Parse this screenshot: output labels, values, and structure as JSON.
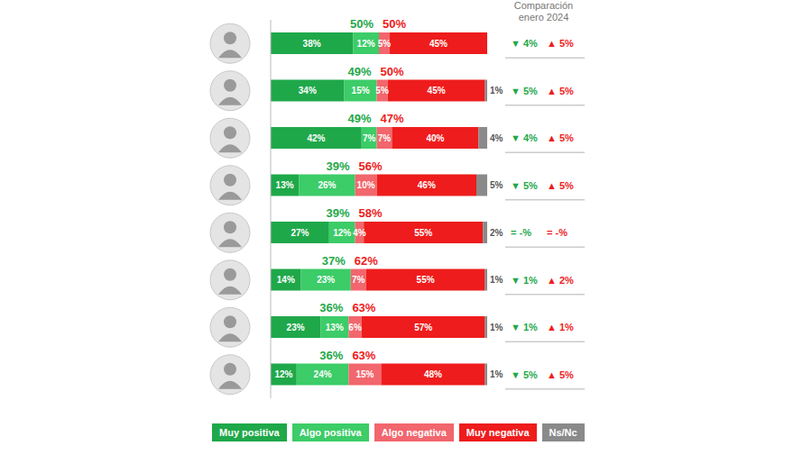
{
  "chart_data": {
    "type": "bar",
    "orientation": "horizontal",
    "stacked": true,
    "data_labels": true,
    "tick_labels": false,
    "legend": "bottom",
    "xlim": [
      0,
      100
    ],
    "categories": [
      null,
      null,
      null,
      null,
      null,
      null,
      null,
      null
    ],
    "series": [
      {
        "name": "Muy positiva",
        "color": "#1fa84a",
        "values": [
          38,
          34,
          42,
          13,
          27,
          14,
          23,
          12
        ],
        "value_labels": [
          "38%",
          "34%",
          "42%",
          "13%",
          "27%",
          "14%",
          "23%",
          "12%"
        ]
      },
      {
        "name": "Algo positiva",
        "color": "#3ccc68",
        "values": [
          12,
          15,
          7,
          26,
          12,
          23,
          13,
          24
        ],
        "value_labels": [
          "12%",
          "15%",
          "7%",
          "26%",
          "12%",
          "23%",
          "13%",
          "24%"
        ]
      },
      {
        "name": "Algo negativa",
        "color": "#f2666d",
        "values": [
          5,
          5,
          7,
          10,
          4,
          7,
          6,
          15
        ],
        "value_labels": [
          "5%",
          "5%",
          "7%",
          "10%",
          "4%",
          "7%",
          "6%",
          "15%"
        ]
      },
      {
        "name": "Muy negativa",
        "color": "#ee1c1c",
        "values": [
          45,
          45,
          40,
          46,
          55,
          55,
          57,
          48
        ],
        "value_labels": [
          "45%",
          "45%",
          "40%",
          "46%",
          "55%",
          "55%",
          "57%",
          "48%"
        ]
      },
      {
        "name": "Ns/Nc",
        "color": "#8a8a8a",
        "values": [
          0,
          1,
          4,
          5,
          2,
          1,
          1,
          1
        ],
        "value_labels": [
          "0%",
          "1%",
          "4%",
          "5%",
          "2%",
          "1%",
          "1%",
          "1%"
        ]
      }
    ],
    "positive_total_labels": [
      "50%",
      "49%",
      "49%",
      "39%",
      "39%",
      "37%",
      "36%",
      "36%"
    ],
    "negative_total_labels": [
      "50%",
      "50%",
      "47%",
      "56%",
      "58%",
      "62%",
      "63%",
      "63%"
    ],
    "comparison_title": "Comparación enero 2024",
    "comparison": [
      {
        "down": "▼ 4%",
        "up": "▲ 5%"
      },
      {
        "down": "▼ 5%",
        "up": "▲ 5%"
      },
      {
        "down": "▼ 4%",
        "up": "▲ 5%"
      },
      {
        "down": "▼ 5%",
        "up": "▲ 5%"
      },
      {
        "down": "= -%",
        "up": "= -%"
      },
      {
        "down": "▼ 1%",
        "up": "▲ 2%"
      },
      {
        "down": "▼ 1%",
        "up": "▲ 1%"
      },
      {
        "down": "▼ 5%",
        "up": "▲ 5%"
      }
    ]
  }
}
